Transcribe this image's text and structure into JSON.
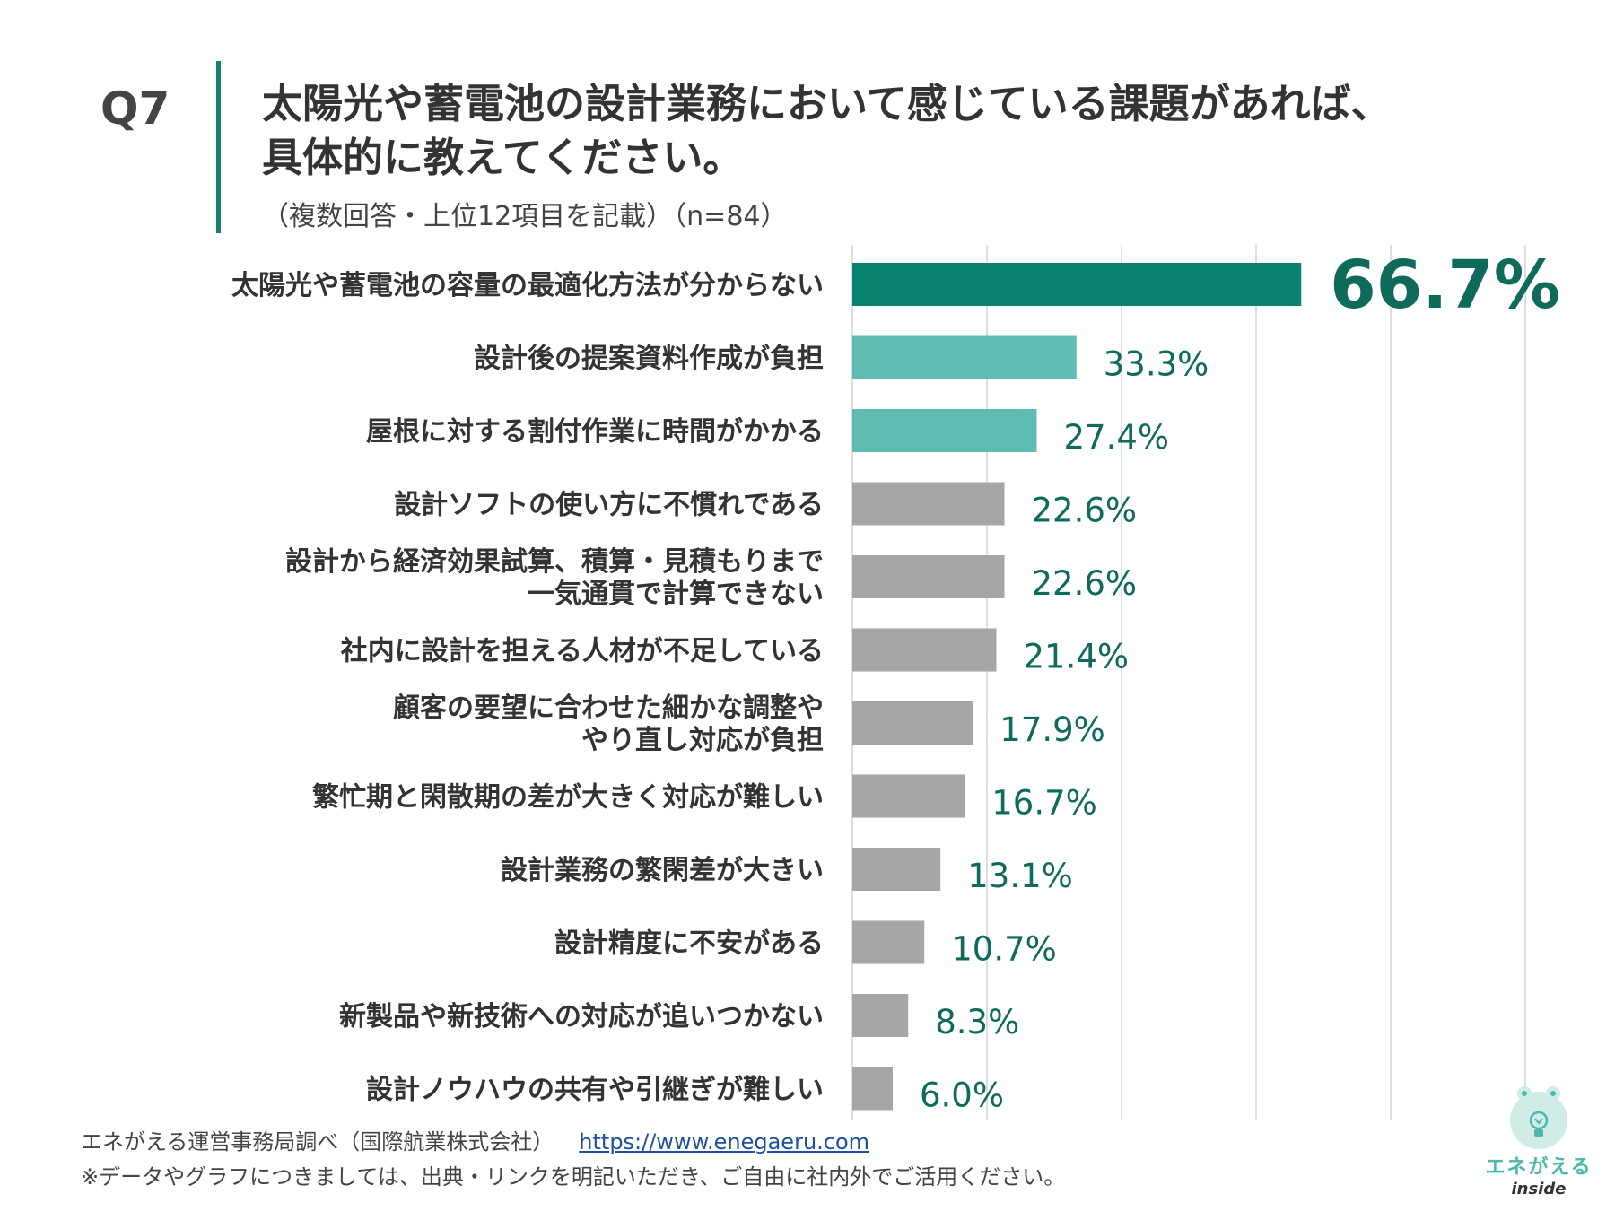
{
  "header": {
    "q_number": "Q7",
    "title_line1": "太陽光や蓄電池の設計業務において感じている課題があれば、",
    "title_line2": "具体的に教えてください。",
    "subtitle": "（複数回答・上位12項目を記載）（n=84）"
  },
  "colors": {
    "accent": "#15806d",
    "bar_top": "#0a8270",
    "bar_second": "#5fbcb2",
    "bar_rest": "#a6a6a6",
    "value_text": "#0e6b5b"
  },
  "chart_data": {
    "type": "bar",
    "orientation": "horizontal",
    "unit": "%",
    "xlim": [
      0,
      100
    ],
    "grid": true,
    "categories": [
      [
        "太陽光や蓄電池の容量の最適化方法が分からない"
      ],
      [
        "設計後の提案資料作成が負担"
      ],
      [
        "屋根に対する割付作業に時間がかかる"
      ],
      [
        "設計ソフトの使い方に不慣れである"
      ],
      [
        "設計から経済効果試算、積算・見積もりまで",
        "一気通貫で計算できない"
      ],
      [
        "社内に設計を担える人材が不足している"
      ],
      [
        "顧客の要望に合わせた細かな調整や",
        "やり直し対応が負担"
      ],
      [
        "繁忙期と閑散期の差が大きく対応が難しい"
      ],
      [
        "設計業務の繁閑差が大きい"
      ],
      [
        "設計精度に不安がある"
      ],
      [
        "新製品や新技術への対応が追いつかない"
      ],
      [
        "設計ノウハウの共有や引継ぎが難しい"
      ]
    ],
    "values": [
      66.7,
      33.3,
      27.4,
      22.6,
      22.6,
      21.4,
      17.9,
      16.7,
      13.1,
      10.7,
      8.3,
      6.0
    ],
    "labels": [
      "66.7%",
      "33.3%",
      "27.4%",
      "22.6%",
      "22.6%",
      "21.4%",
      "17.9%",
      "16.7%",
      "13.1%",
      "10.7%",
      "8.3%",
      "6.0%"
    ]
  },
  "footer": {
    "source": "エネがえる運営事務局調べ（国際航業株式会社）",
    "url": "https://www.enegaeru.com",
    "note": "※データやグラフにつきましては、出典・リンクを明記いただき、ご自由に社内外でご活用ください。"
  },
  "logo": {
    "name": "エネがえる",
    "sub": "inside"
  }
}
